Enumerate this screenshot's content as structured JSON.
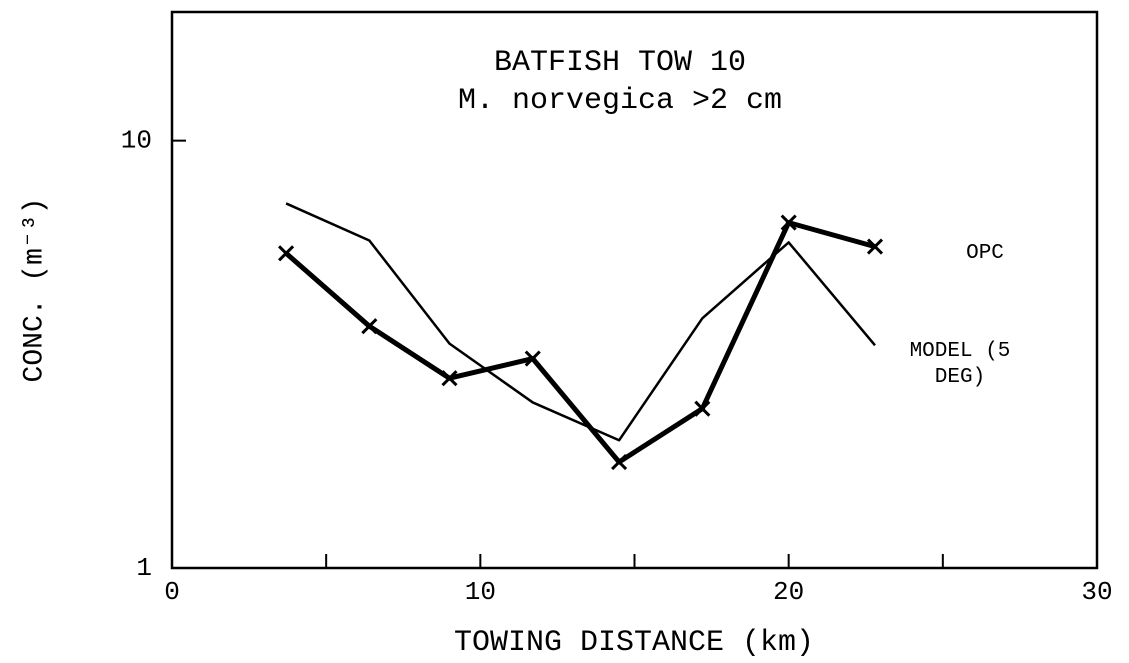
{
  "chart_data": {
    "type": "line",
    "title": "BATFISH TOW 10",
    "subtitle": "M. norvegica >2 cm",
    "xlabel": "TOWING DISTANCE (km)",
    "ylabel": "CONC. (m⁻³)",
    "x": [
      3.7,
      6.4,
      9.0,
      11.7,
      14.5,
      17.2,
      20.0,
      22.8
    ],
    "series": [
      {
        "name": "OPC",
        "color": "#000000",
        "values": [
          5.45,
          3.68,
          2.78,
          3.09,
          1.77,
          2.36,
          6.43,
          5.65
        ],
        "marker": "x",
        "width": 5
      },
      {
        "name": "MODEL (5 DEG)",
        "color": "#000000",
        "values": [
          7.13,
          5.84,
          3.35,
          2.44,
          1.99,
          3.84,
          5.78,
          3.32
        ],
        "width": 2.5
      }
    ],
    "xlim": [
      0,
      30
    ],
    "xticks": [
      0,
      10,
      20,
      30
    ],
    "xminorticks": [
      5,
      15,
      25
    ],
    "ylim": [
      1,
      20
    ],
    "yticks": [
      1,
      10
    ],
    "ylog": true,
    "grid": false
  }
}
